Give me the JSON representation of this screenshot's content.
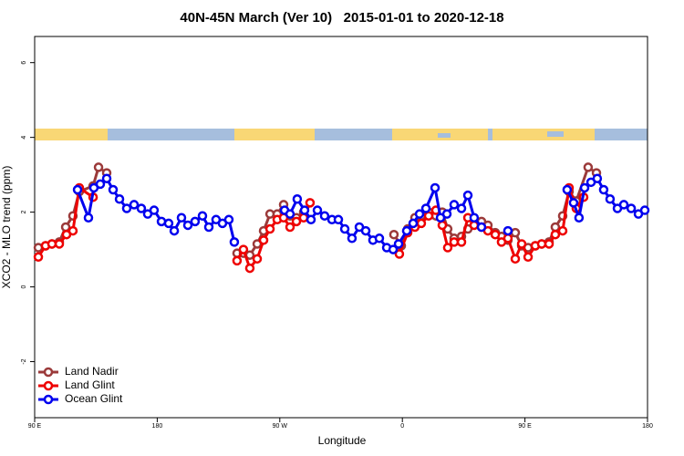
{
  "chart_data": {
    "type": "line",
    "title": "40N-45N March (Ver 10)   2015-01-01 to 2020-12-18",
    "xlabel": "Longitude",
    "ylabel": "XCO2 - MLO trend (ppm)",
    "xlim": [
      90,
      540
    ],
    "ylim": [
      -3.5,
      6.7
    ],
    "xticks": [
      {
        "value": 90,
        "label": "90 E"
      },
      180,
      {
        "value": 270,
        "label": "90 W"
      },
      {
        "value": 360,
        "label": "0"
      },
      {
        "value": 450,
        "label": "90 E"
      },
      180
    ],
    "yticks": [
      -2,
      0,
      2,
      4,
      6
    ],
    "legend": "bottom-left",
    "series": [
      {
        "name": "Land Nadir",
        "color": "#9b3a3a",
        "x": [
          92.7,
          98,
          102.7,
          108.1,
          112.8,
          118.1,
          122.8,
          132.9,
          136.9,
          142.9,
          190,
          238.6,
          243.3,
          248,
          253.4,
          258.1,
          262.8,
          268.1,
          272.8,
          277.5,
          282.2,
          287.5,
          350,
          353.8,
          359.2,
          363.9,
          369.2,
          373.9,
          379.3,
          384.6,
          389.3,
          393.3,
          398,
          403.4,
          408.1,
          412.7,
          418.1,
          422.8,
          428.2,
          432.8,
          437.5,
          442.9,
          447.6,
          452.3,
          457.6,
          462.3,
          467.7,
          472.3,
          477.7,
          482.4,
          487.7,
          496.4,
          502.5
        ],
        "values": [
          1.05,
          1.1,
          1.15,
          1.2,
          1.6,
          1.9,
          2.55,
          2.7,
          3.2,
          3.05,
          null,
          0.9,
          0.9,
          0.85,
          1.15,
          1.5,
          1.95,
          1.95,
          2.2,
          1.9,
          1.85,
          2.0,
          null,
          1.4,
          1.1,
          1.55,
          1.85,
          1.9,
          2.0,
          1.9,
          2.0,
          1.55,
          1.3,
          1.35,
          1.55,
          1.8,
          1.75,
          1.65,
          1.45,
          1.35,
          1.25,
          1.45,
          1.1,
          1.05,
          1.1,
          1.15,
          1.2,
          1.6,
          1.9,
          2.55,
          2.3,
          3.2,
          3.05
        ]
      },
      {
        "name": "Land Glint",
        "color": "#ee0000",
        "x": [
          92.7,
          98,
          102.7,
          108.1,
          113.4,
          118.1,
          122.8,
          132.9,
          180,
          238.6,
          243.3,
          248,
          253.4,
          258.1,
          262.8,
          268.1,
          272.8,
          277.5,
          282.2,
          287.5,
          292.2,
          330,
          357.8,
          363.9,
          369.2,
          373.9,
          379.3,
          384.6,
          389.3,
          393.3,
          398,
          403.4,
          408.1,
          412.7,
          418.1,
          422.8,
          428.2,
          432.8,
          437.5,
          442.9,
          447.6,
          452.3,
          457.6,
          462.3,
          467.7,
          472.3,
          477.7,
          482.4,
          487.7,
          493.1
        ],
        "values": [
          0.8,
          1.1,
          1.15,
          1.15,
          1.4,
          1.5,
          2.65,
          2.4,
          null,
          0.7,
          1.0,
          0.5,
          0.75,
          1.25,
          1.55,
          1.8,
          1.85,
          1.6,
          1.75,
          1.85,
          2.25,
          null,
          0.88,
          1.45,
          1.6,
          1.7,
          1.9,
          2.05,
          1.65,
          1.05,
          1.2,
          1.2,
          1.85,
          1.65,
          1.6,
          1.5,
          1.4,
          1.2,
          1.3,
          0.75,
          1.15,
          0.8,
          1.1,
          1.15,
          1.15,
          1.4,
          1.5,
          2.65,
          2.1,
          2.4
        ]
      },
      {
        "name": "Ocean Glint",
        "color": "#0000ee",
        "x": [
          121.5,
          129.5,
          133.5,
          138.2,
          142.9,
          147.6,
          152.3,
          157.6,
          163,
          168.3,
          173,
          177.7,
          183.1,
          188.4,
          192.5,
          197.8,
          202.5,
          207.8,
          213.2,
          217.9,
          223.2,
          227.9,
          232.6,
          236.6,
          255,
          273.5,
          277.5,
          282.8,
          288.2,
          292.9,
          297.6,
          302.9,
          308.3,
          313,
          317.7,
          323,
          328.4,
          333.1,
          338.4,
          343.1,
          348.5,
          353.2,
          357.2,
          363.2,
          367.9,
          372.6,
          377.3,
          384,
          388,
          392.7,
          398,
          403.4,
          408.1,
          412.7,
          418.1,
          428,
          437.5,
          460,
          481,
          485.7,
          489.7,
          493.8,
          498.5,
          503.1,
          507.8,
          512.5,
          517.9,
          522.6,
          528,
          533.3,
          538
        ],
        "values": [
          2.6,
          1.85,
          2.65,
          2.75,
          2.9,
          2.6,
          2.35,
          2.1,
          2.2,
          2.1,
          1.95,
          2.05,
          1.75,
          1.7,
          1.5,
          1.85,
          1.65,
          1.75,
          1.9,
          1.6,
          1.8,
          1.7,
          1.8,
          1.2,
          null,
          2.05,
          1.95,
          2.35,
          2.05,
          1.8,
          2.05,
          1.9,
          1.8,
          1.8,
          1.55,
          1.3,
          1.6,
          1.5,
          1.25,
          1.3,
          1.05,
          1.0,
          1.15,
          1.5,
          1.7,
          1.95,
          2.1,
          2.65,
          1.85,
          1.95,
          2.2,
          2.1,
          2.45,
          1.85,
          1.6,
          null,
          1.5,
          null,
          2.6,
          2.25,
          1.85,
          2.65,
          2.8,
          2.9,
          2.6,
          2.35,
          2.1,
          2.2,
          2.1,
          1.95,
          2.05
        ]
      }
    ]
  }
}
